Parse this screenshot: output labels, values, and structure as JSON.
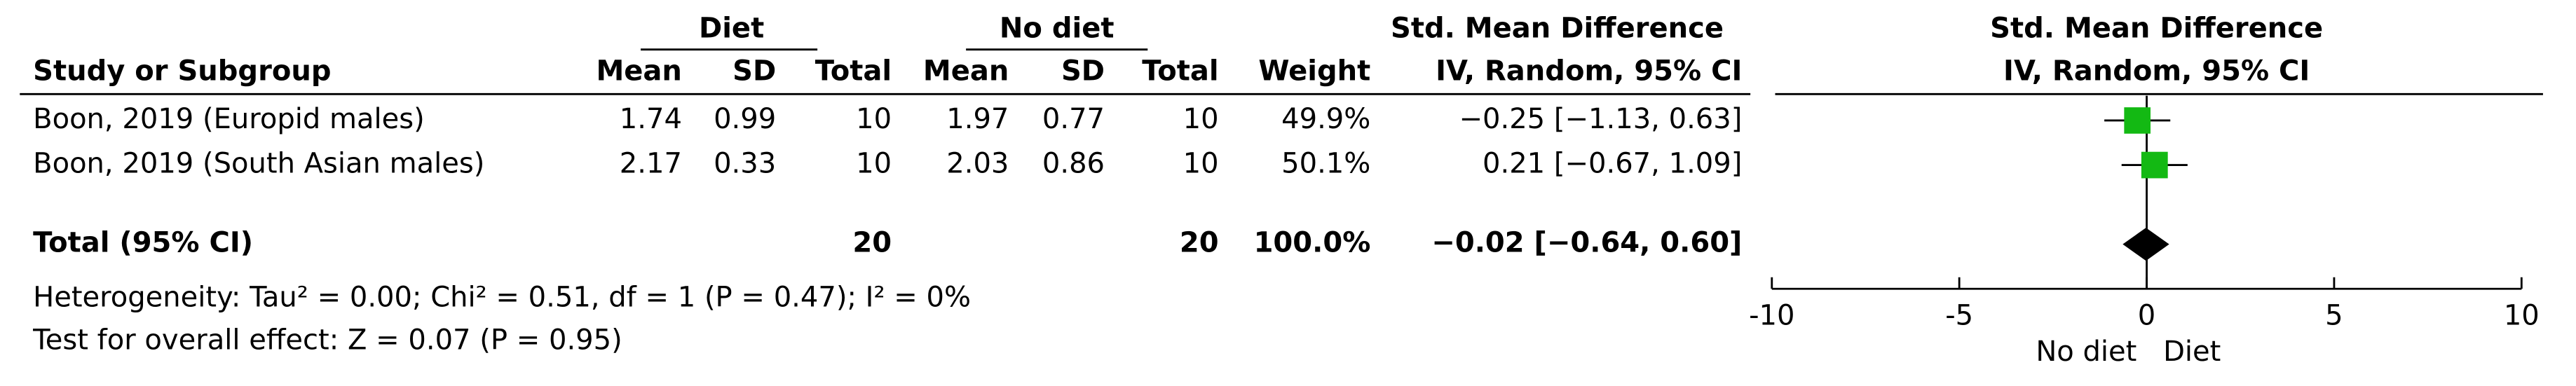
{
  "table": {
    "group_headers": [
      "Diet",
      "No diet",
      "Std. Mean Difference"
    ],
    "columns": [
      "Study or Subgroup",
      "Mean",
      "SD",
      "Total",
      "Mean",
      "SD",
      "Total",
      "Weight",
      "IV, Random, 95% CI"
    ],
    "rows": [
      [
        "Boon, 2019 (Europid males)",
        "1.74",
        "0.99",
        "10",
        "1.97",
        "0.77",
        "10",
        "49.9%",
        "−0.25 [−1.13, 0.63]"
      ],
      [
        "Boon, 2019 (South Asian males)",
        "2.17",
        "0.33",
        "10",
        "2.03",
        "0.86",
        "10",
        "50.1%",
        "0.21 [−0.67, 1.09]"
      ]
    ],
    "total": {
      "label": "Total (95% CI)",
      "diet_total": "20",
      "nodiet_total": "20",
      "weight": "100.0%",
      "ci": "−0.02 [−0.64, 0.60]"
    },
    "heterogeneity": "Heterogeneity: Tau² = 0.00; Chi² = 0.51, df = 1 (P = 0.47); I² = 0%",
    "overall_effect": "Test for overall effect: Z = 0.07 (P = 0.95)"
  },
  "chart_data": {
    "type": "forest",
    "title": "Std. Mean Difference",
    "subtitle": "IV, Random, 95% CI",
    "values": [
      -0.25,
      0.21
    ],
    "ci_low": [
      -1.13,
      -0.67
    ],
    "ci_high": [
      0.63,
      1.09
    ],
    "weights": [
      49.9,
      50.1
    ],
    "total": {
      "value": -0.02,
      "ci_low": -0.64,
      "ci_high": 0.6
    },
    "color": "#13b913",
    "xlim": [
      -10,
      10
    ],
    "xticks": [
      -10,
      -5,
      0,
      5,
      10
    ],
    "xlabel_left": "No diet",
    "xlabel_right": "Diet"
  }
}
